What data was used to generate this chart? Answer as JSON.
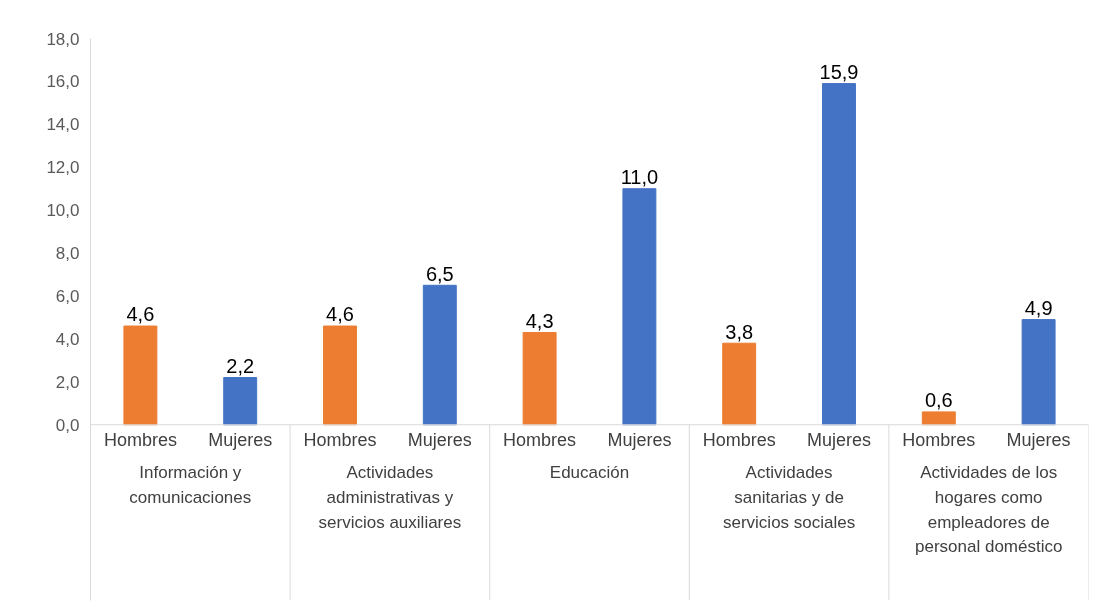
{
  "chart_data": {
    "type": "bar",
    "categories": [
      "Información y comunicaciones",
      "Actividades administrativas y servicios auxiliares",
      "Educación",
      "Actividades sanitarias y de servicios sociales",
      "Actividades de los hogares como empleadores de personal doméstico"
    ],
    "series": [
      {
        "name": "Hombres",
        "color": "#ed7d31",
        "values": [
          4.6,
          4.6,
          4.3,
          3.8,
          0.6
        ],
        "value_labels": [
          "4,6",
          "4,6",
          "4,3",
          "3,8",
          "0,6"
        ]
      },
      {
        "name": "Mujeres",
        "color": "#4472c4",
        "values": [
          2.2,
          6.5,
          11.0,
          15.9,
          4.9
        ],
        "value_labels": [
          "2,2",
          "6,5",
          "11,0",
          "15,9",
          "4,9"
        ]
      }
    ],
    "ylim": [
      0,
      18
    ],
    "yticks": [
      {
        "value": 0,
        "label": "0,0"
      },
      {
        "value": 2,
        "label": "2,0"
      },
      {
        "value": 4,
        "label": "4,0"
      },
      {
        "value": 6,
        "label": "6,0"
      },
      {
        "value": 8,
        "label": "8,0"
      },
      {
        "value": 10,
        "label": "10,0"
      },
      {
        "value": 12,
        "label": "12,0"
      },
      {
        "value": 14,
        "label": "14,0"
      },
      {
        "value": 16,
        "label": "16,0"
      },
      {
        "value": 18,
        "label": "18,0"
      }
    ],
    "grid": false
  }
}
